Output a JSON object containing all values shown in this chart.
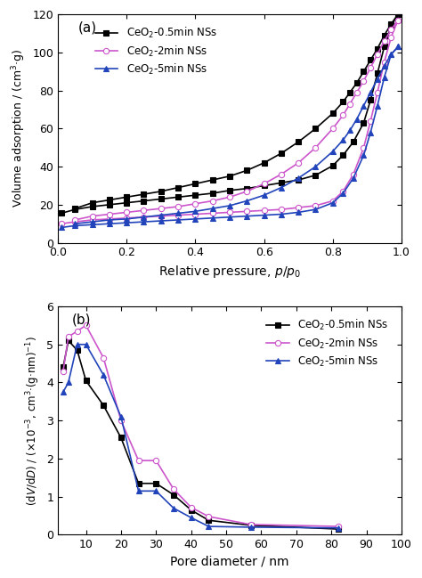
{
  "panel_a": {
    "label": "(a)",
    "xlabel": "Relative pressure, $p/p_0$",
    "ylabel": "Volume adsorption / (cm$^3$·g)",
    "xlim": [
      0,
      1.0
    ],
    "ylim": [
      0,
      120
    ],
    "yticks": [
      0,
      20,
      40,
      60,
      80,
      100,
      120
    ],
    "xticks": [
      0,
      0.2,
      0.4,
      0.6,
      0.8,
      1.0
    ],
    "series": [
      {
        "label": "CeO$_2$-0.5min NSs",
        "color": "#000000",
        "marker": "s",
        "markersize": 4.5,
        "x_ads": [
          0.01,
          0.05,
          0.1,
          0.15,
          0.2,
          0.25,
          0.3,
          0.35,
          0.4,
          0.45,
          0.5,
          0.55,
          0.6,
          0.65,
          0.7,
          0.75,
          0.8,
          0.83,
          0.86,
          0.89,
          0.91,
          0.93,
          0.95,
          0.97,
          0.99
        ],
        "y_ads": [
          15.5,
          17.5,
          19.0,
          20.0,
          21.0,
          22.0,
          23.0,
          24.0,
          25.0,
          26.0,
          27.5,
          28.5,
          30.0,
          31.5,
          33.0,
          35.5,
          40.5,
          46.0,
          53.0,
          63.0,
          75.0,
          89.0,
          103.0,
          114.0,
          120.0
        ],
        "x_des": [
          0.99,
          0.97,
          0.95,
          0.93,
          0.91,
          0.89,
          0.87,
          0.85,
          0.83,
          0.8,
          0.75,
          0.7,
          0.65,
          0.6,
          0.55,
          0.5,
          0.45,
          0.4,
          0.35,
          0.3,
          0.25,
          0.2,
          0.15,
          0.1,
          0.05
        ],
        "y_des": [
          120.0,
          115.0,
          109.0,
          102.0,
          96.0,
          90.0,
          84.0,
          79.0,
          74.0,
          68.0,
          60.0,
          53.0,
          47.0,
          42.0,
          38.0,
          35.0,
          33.0,
          31.0,
          29.0,
          27.0,
          25.5,
          24.0,
          22.5,
          21.0,
          18.0
        ]
      },
      {
        "label": "CeO$_2$-2min NSs",
        "color": "#cc55cc",
        "marker": "o",
        "markersize": 4.5,
        "x_ads": [
          0.01,
          0.05,
          0.1,
          0.15,
          0.2,
          0.25,
          0.3,
          0.35,
          0.4,
          0.45,
          0.5,
          0.55,
          0.6,
          0.65,
          0.7,
          0.75,
          0.8,
          0.83,
          0.86,
          0.89,
          0.91,
          0.93,
          0.95,
          0.97,
          0.99
        ],
        "y_ads": [
          10.0,
          11.0,
          12.0,
          12.5,
          13.0,
          13.5,
          14.0,
          14.5,
          15.0,
          15.5,
          16.0,
          16.5,
          17.0,
          17.5,
          18.5,
          19.5,
          22.0,
          27.0,
          36.0,
          50.0,
          64.0,
          79.0,
          95.0,
          108.0,
          117.0
        ],
        "x_des": [
          0.99,
          0.97,
          0.95,
          0.93,
          0.91,
          0.89,
          0.87,
          0.85,
          0.83,
          0.8,
          0.75,
          0.7,
          0.65,
          0.6,
          0.55,
          0.5,
          0.45,
          0.4,
          0.35,
          0.3,
          0.25,
          0.2,
          0.15,
          0.1,
          0.05
        ],
        "y_des": [
          117.0,
          112.0,
          106.0,
          99.0,
          92.0,
          85.0,
          79.0,
          73.0,
          67.0,
          60.0,
          50.0,
          42.0,
          36.0,
          31.0,
          27.0,
          24.0,
          22.0,
          20.5,
          19.0,
          18.0,
          17.0,
          16.0,
          15.0,
          14.0,
          12.0
        ]
      },
      {
        "label": "CeO$_2$-5min NSs",
        "color": "#2244bb",
        "marker": "^",
        "markersize": 4.5,
        "x_ads": [
          0.01,
          0.05,
          0.1,
          0.15,
          0.2,
          0.25,
          0.3,
          0.35,
          0.4,
          0.45,
          0.5,
          0.55,
          0.6,
          0.65,
          0.7,
          0.75,
          0.8,
          0.83,
          0.86,
          0.89,
          0.91,
          0.93,
          0.95,
          0.97,
          0.99
        ],
        "y_ads": [
          8.0,
          9.0,
          9.5,
          10.0,
          10.5,
          11.0,
          11.5,
          12.0,
          12.5,
          13.0,
          13.5,
          14.0,
          14.5,
          15.0,
          16.0,
          17.5,
          21.0,
          26.0,
          34.0,
          46.0,
          58.0,
          72.0,
          87.0,
          99.0,
          103.0
        ],
        "x_des": [
          0.99,
          0.97,
          0.95,
          0.93,
          0.91,
          0.89,
          0.87,
          0.85,
          0.83,
          0.8,
          0.75,
          0.7,
          0.65,
          0.6,
          0.55,
          0.5,
          0.45,
          0.4,
          0.35,
          0.3,
          0.25,
          0.2,
          0.15,
          0.1,
          0.05
        ],
        "y_des": [
          103.0,
          99.0,
          93.0,
          86.0,
          79.0,
          72.0,
          65.0,
          59.0,
          54.0,
          48.0,
          40.0,
          34.0,
          29.0,
          25.0,
          22.0,
          19.5,
          18.0,
          16.5,
          15.5,
          14.5,
          13.5,
          12.5,
          12.0,
          11.0,
          10.0
        ]
      }
    ]
  },
  "panel_b": {
    "label": "(b)",
    "xlabel": "Pore diameter / nm",
    "ylabel": "(d$V$/d$D$) / (×10$^{-3}$, cm$^3$·(g·nm)$^{-1}$)",
    "xlim": [
      2,
      100
    ],
    "ylim": [
      0,
      6
    ],
    "yticks": [
      0,
      1,
      2,
      3,
      4,
      5,
      6
    ],
    "xticks": [
      10,
      20,
      30,
      40,
      50,
      60,
      70,
      80,
      90,
      100
    ],
    "series": [
      {
        "label": "CeO$_2$-0.5min NSs",
        "color": "#000000",
        "marker": "s",
        "markersize": 4.5,
        "x": [
          3.5,
          5.0,
          7.5,
          10.0,
          15.0,
          20.0,
          25.0,
          30.0,
          35.0,
          40.0,
          45.0,
          57.0,
          82.0
        ],
        "y": [
          4.4,
          5.1,
          4.85,
          4.05,
          3.4,
          2.55,
          1.35,
          1.35,
          1.05,
          0.65,
          0.38,
          0.25,
          0.15
        ]
      },
      {
        "label": "CeO$_2$-2min NSs",
        "color": "#cc55cc",
        "marker": "o",
        "markersize": 4.5,
        "x": [
          3.5,
          5.0,
          7.5,
          10.0,
          15.0,
          20.0,
          25.0,
          30.0,
          35.0,
          40.0,
          45.0,
          57.0,
          82.0
        ],
        "y": [
          4.3,
          5.2,
          5.35,
          5.5,
          4.65,
          3.0,
          1.95,
          1.95,
          1.2,
          0.72,
          0.48,
          0.27,
          0.22
        ]
      },
      {
        "label": "CeO$_2$-5min NSs",
        "color": "#2244bb",
        "marker": "^",
        "markersize": 4.5,
        "x": [
          3.5,
          5.0,
          7.5,
          10.0,
          15.0,
          20.0,
          25.0,
          30.0,
          35.0,
          40.0,
          45.0,
          57.0,
          82.0
        ],
        "y": [
          3.75,
          4.0,
          5.0,
          5.0,
          4.2,
          3.1,
          1.15,
          1.15,
          0.7,
          0.45,
          0.22,
          0.2,
          0.18
        ]
      }
    ]
  },
  "figure_bg": "#ffffff",
  "axes_bg": "#ffffff"
}
